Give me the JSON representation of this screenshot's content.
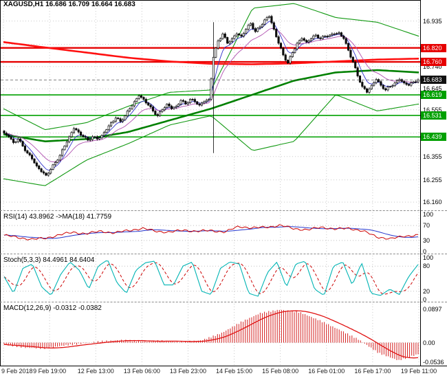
{
  "chart_data": {
    "type": "candlestick",
    "title": "XAGUSD,H1 16.686 16.709 16.664 16.683",
    "symbol": "XAGUSD",
    "timeframe": "H1",
    "ohlc_display": {
      "open": "16.686",
      "high": "16.709",
      "low": "16.664",
      "close": "16.683"
    },
    "x_labels": [
      "9 Feb 2018",
      "9 Feb 19:00",
      "12 Feb 13:00",
      "13 Feb 06:00",
      "13 Feb 23:00",
      "14 Feb 15:00",
      "15 Feb 08:00",
      "16 Feb 01:00",
      "16 Feb 17:00",
      "19 Feb 11:00"
    ],
    "price_axis": {
      "min": 16.125,
      "max": 17.025,
      "ticks": [
        16.935,
        16.835,
        16.74,
        16.645,
        16.555,
        16.455,
        16.355,
        16.255,
        16.16
      ]
    },
    "levels": {
      "red": [
        16.82,
        16.76
      ],
      "green": [
        16.619,
        16.531,
        16.439
      ],
      "current": 16.683
    },
    "candles_close": [
      16.455,
      16.44,
      16.415,
      16.43,
      16.4,
      16.37,
      16.345,
      16.315,
      16.29,
      16.275,
      16.3,
      16.33,
      16.36,
      16.4,
      16.44,
      16.475,
      16.46,
      16.44,
      16.425,
      16.44,
      16.43,
      16.445,
      16.47,
      16.5,
      16.52,
      16.505,
      16.53,
      16.56,
      16.59,
      16.615,
      16.6,
      16.575,
      16.55,
      16.53,
      16.555,
      16.58,
      16.56,
      16.57,
      16.595,
      16.58,
      16.6,
      16.59,
      16.575,
      16.59,
      16.6,
      16.78,
      16.85,
      16.88,
      16.84,
      16.86,
      16.88,
      16.87,
      16.9,
      16.925,
      16.89,
      16.91,
      16.94,
      16.955,
      16.9,
      16.84,
      16.79,
      16.755,
      16.8,
      16.84,
      16.86,
      16.845,
      16.86,
      16.875,
      16.86,
      16.87,
      16.875,
      16.88,
      16.885,
      16.86,
      16.81,
      16.76,
      16.7,
      16.655,
      16.63,
      16.66,
      16.685,
      16.66,
      16.64,
      16.655,
      16.67,
      16.685,
      16.67,
      16.66,
      16.675,
      16.683
    ],
    "spike_candle": {
      "index_fraction": 0.5056,
      "high": 16.93,
      "low": 16.37
    },
    "overlays": {
      "bollinger_upper": [
        16.56,
        16.47,
        16.5,
        16.57,
        16.63,
        16.64,
        16.99,
        17.01,
        16.95,
        16.93,
        16.87
      ],
      "bollinger_lower": [
        16.26,
        16.23,
        16.34,
        16.41,
        16.49,
        16.53,
        16.38,
        16.42,
        16.62,
        16.55,
        16.58
      ],
      "ma_red_slow": [
        16.845,
        16.822,
        16.8,
        16.778,
        16.762,
        16.752,
        16.75,
        16.754,
        16.762,
        16.77,
        16.774
      ],
      "ma_green_slow": [
        16.45,
        16.42,
        16.43,
        16.46,
        16.51,
        16.56,
        16.62,
        16.68,
        16.715,
        16.725,
        16.715
      ]
    },
    "rsi": {
      "label": "RSI(14) 43.8962  ->MA(18) 41.7759",
      "value": 43.8962,
      "ma_value": 41.7759,
      "ticks": [
        100,
        70,
        30,
        0
      ],
      "scale_min": -5,
      "scale_max": 105,
      "values": [
        44,
        38,
        33,
        36,
        45,
        52,
        48,
        55,
        50,
        57,
        62,
        55,
        52,
        58,
        54,
        57,
        52,
        68,
        63,
        66,
        70,
        62,
        58,
        66,
        60,
        63,
        55,
        40,
        34,
        42,
        44
      ]
    },
    "stoch": {
      "label": "Stoch(5,3,3) 84.4961 84.6404",
      "k_value": 84.4961,
      "d_value": 84.6404,
      "ticks": [
        100,
        80,
        20,
        0
      ],
      "scale_min": -5,
      "scale_max": 105,
      "k": [
        55,
        15,
        75,
        85,
        30,
        10,
        60,
        90,
        70,
        25,
        80,
        95,
        40,
        15,
        70,
        88,
        92,
        35,
        35,
        80,
        90,
        20,
        12,
        75,
        90,
        85,
        15,
        8,
        65,
        90,
        30,
        85,
        92,
        25,
        10,
        80,
        90,
        35,
        88,
        15,
        10,
        25,
        12,
        55,
        84
      ]
    },
    "macd": {
      "label": "MACD(12,26,9) -0.0312 -0.0382",
      "main_value": -0.0312,
      "signal_value": -0.0382,
      "ticks": [
        {
          "label": "0.0897",
          "value": 0.0897
        },
        {
          "label": "0.00",
          "value": 0.0
        },
        {
          "label": "-0.0536",
          "value": -0.0536
        }
      ],
      "scale_min": -0.062,
      "scale_max": 0.105,
      "histogram": [
        -0.005,
        -0.013,
        -0.016,
        -0.008,
        -0.002,
        0.004,
        0.007,
        0.003,
        0.005,
        0.002,
        0.006,
        0.025,
        0.055,
        0.08,
        0.089,
        0.082,
        0.06,
        0.035,
        0.008,
        -0.028,
        -0.048,
        -0.031
      ]
    },
    "colors": {
      "bull": "#ffffff",
      "bear": "#111111",
      "wick": "#000000",
      "grid": "#c9c9c9",
      "band_green": "#119911",
      "ma_red": "#ff1010",
      "ma_green": "#008000",
      "ema_blue": "#3333cc",
      "ema_violet": "#b04fb0",
      "level_red": "#e60000",
      "level_green": "#00a000",
      "badge_current": "#111111",
      "rsi_line": "#cc0000",
      "rsi_ma": "#2233cc",
      "stoch_k": "#00b4b4",
      "stoch_d": "#cc0000",
      "macd_bar": "#d42020",
      "macd_signal": "#e01010"
    }
  }
}
